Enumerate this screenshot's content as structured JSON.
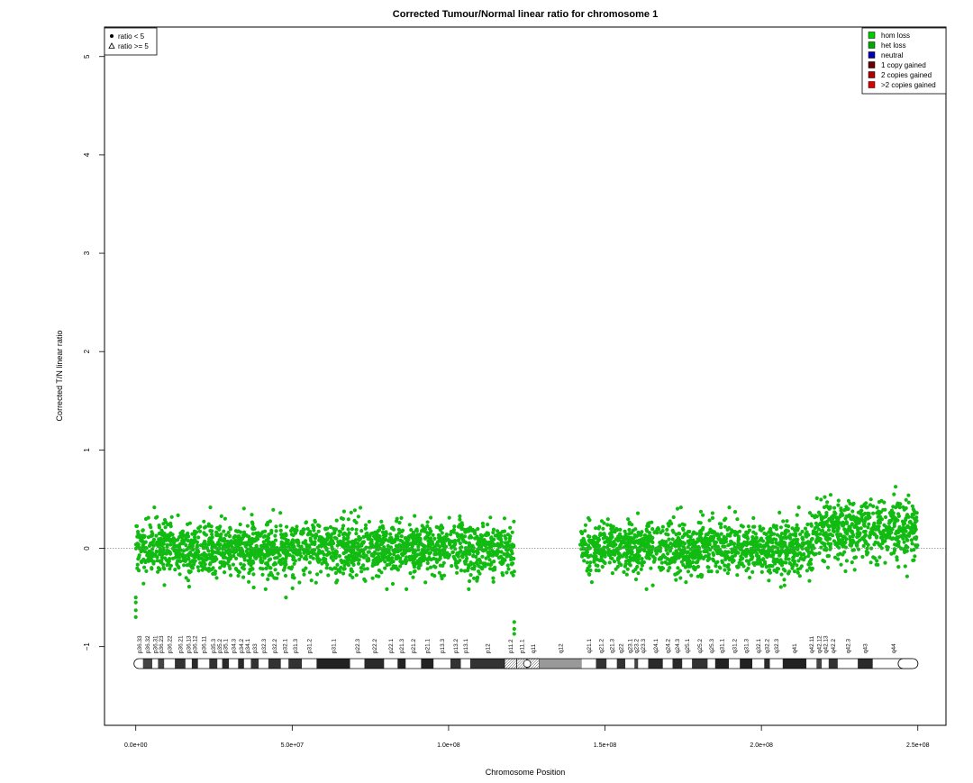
{
  "chart_data": {
    "type": "scatter",
    "title": "Corrected Tumour/Normal linear ratio for chromosome  1",
    "xlabel": "Chromosome Position",
    "ylabel": "Corrected T/N linear ratio",
    "xlim": [
      -10000000,
      259000000
    ],
    "ylim": [
      -1.8,
      5.3
    ],
    "x_ticks": [
      0,
      50000000,
      100000000,
      150000000,
      200000000,
      250000000
    ],
    "x_tick_labels": [
      "0.0e+00",
      "5.0e+07",
      "1.0e+08",
      "1.5e+08",
      "2.0e+08",
      "2.5e+08"
    ],
    "y_ticks": [
      -1,
      0,
      1,
      2,
      3,
      4,
      5
    ],
    "y_tick_labels": [
      "−1",
      "0",
      "1",
      "2",
      "3",
      "4",
      "5"
    ],
    "reference_line_y": 0,
    "grid": false,
    "shape_legend": {
      "position": "top-left",
      "items": [
        {
          "symbol": "circle",
          "label": "ratio < 5"
        },
        {
          "symbol": "triangle",
          "label": "ratio >= 5"
        }
      ]
    },
    "color_legend": {
      "position": "top-right",
      "items": [
        {
          "label": "hom loss",
          "color": "#00cc00"
        },
        {
          "label": "het loss",
          "color": "#00aa00"
        },
        {
          "label": "neutral",
          "color": "#0000aa"
        },
        {
          "label": "1 copy gained",
          "color": "#660000"
        },
        {
          "label": "2 copies gained",
          "color": "#aa0000"
        },
        {
          "label": ">2 copies gained",
          "color": "#dd0000"
        }
      ]
    },
    "point_color": "#11bb11",
    "point_count_estimate": 4000,
    "segments": [
      {
        "x_start": 0,
        "x_end": 121000000,
        "mean": 0.0,
        "spread": 0.13
      },
      {
        "x_start": 142000000,
        "x_end": 217000000,
        "mean": 0.0,
        "spread": 0.13
      },
      {
        "x_start": 217000000,
        "x_end": 250000000,
        "mean": 0.18,
        "spread": 0.15
      }
    ],
    "outliers": [
      {
        "x": 0,
        "y": -0.5
      },
      {
        "x": 0,
        "y": -0.55
      },
      {
        "x": 0,
        "y": -0.63
      },
      {
        "x": 0,
        "y": -0.7
      },
      {
        "x": 48000000,
        "y": -0.5
      },
      {
        "x": 121000000,
        "y": -0.75
      },
      {
        "x": 121000000,
        "y": -0.82
      },
      {
        "x": 121000000,
        "y": -0.87
      }
    ],
    "ideogram": {
      "band_labels": [
        "p36.33",
        "p36.32",
        "p36.31",
        "p36.23",
        "p36.22",
        "p36.21",
        "p36.13",
        "p36.12",
        "p36.11",
        "p35.3",
        "p35.2",
        "p35.1",
        "p34.3",
        "p34.2",
        "p34.1",
        "p33",
        "p32.3",
        "p32.2",
        "p32.1",
        "p31.3",
        "p31.2",
        "p31.1",
        "p22.3",
        "p22.2",
        "p22.1",
        "p21.3",
        "p21.2",
        "p21.1",
        "p13.3",
        "p13.2",
        "p13.1",
        "p12",
        "p11.2",
        "p11.1",
        "q11",
        "q12",
        "q21.1",
        "q21.2",
        "q21.3",
        "q22",
        "q23.1",
        "q23.2",
        "q23.3",
        "q24.1",
        "q24.2",
        "q24.3",
        "q25.1",
        "q25.2",
        "q25.3",
        "q31.1",
        "q31.2",
        "q31.3",
        "q32.1",
        "q32.2",
        "q32.3",
        "q41",
        "q42.11",
        "q42.12",
        "q42.13",
        "q42.2",
        "q42.3",
        "q43",
        "q44"
      ],
      "band_ends_mb": [
        2.3,
        5.3,
        7.1,
        9.1,
        12.5,
        15.9,
        17.9,
        19.9,
        23.5,
        26.1,
        27.6,
        29.8,
        32.7,
        34.6,
        36.8,
        39.3,
        42.4,
        46.4,
        48.8,
        53.1,
        57.8,
        68.5,
        73.1,
        79.4,
        83.7,
        86.3,
        91.2,
        95.2,
        100.6,
        103.9,
        106.9,
        117.9,
        121.8,
        125.1,
        128.9,
        142.6,
        147.1,
        150.5,
        153.8,
        156.5,
        159.4,
        160.6,
        163.8,
        168.5,
        171.6,
        174.7,
        177.8,
        182.8,
        185.2,
        189.6,
        193.1,
        197.1,
        200.9,
        202.7,
        206.8,
        214.4,
        217.6,
        219.3,
        221.5,
        224.4,
        230.8,
        235.6,
        248.9
      ],
      "band_stains": [
        "gneg",
        "gpos25",
        "gneg",
        "gpos25",
        "gneg",
        "gpos50",
        "gneg",
        "gpos75",
        "gneg",
        "gpos50",
        "gneg",
        "gpos75",
        "gneg",
        "gpos75",
        "gneg",
        "gpos50",
        "gneg",
        "gpos50",
        "gneg",
        "gpos50",
        "gneg",
        "gpos100",
        "gneg",
        "gpos75",
        "gneg",
        "gpos100",
        "gneg",
        "gpos100",
        "gneg",
        "gpos50",
        "gneg",
        "gpos50",
        "acen",
        "acen",
        "acen",
        "gvar",
        "gneg",
        "gpos50",
        "gneg",
        "gpos50",
        "gneg",
        "gpos25",
        "gneg",
        "gpos75",
        "gneg",
        "gpos75",
        "gneg",
        "gpos50",
        "gneg",
        "gpos100",
        "gneg",
        "gpos100",
        "gneg",
        "gpos75",
        "gneg",
        "gpos100",
        "gneg",
        "gpos25",
        "gneg",
        "gpos50",
        "gneg",
        "gpos75",
        "gneg"
      ]
    }
  }
}
